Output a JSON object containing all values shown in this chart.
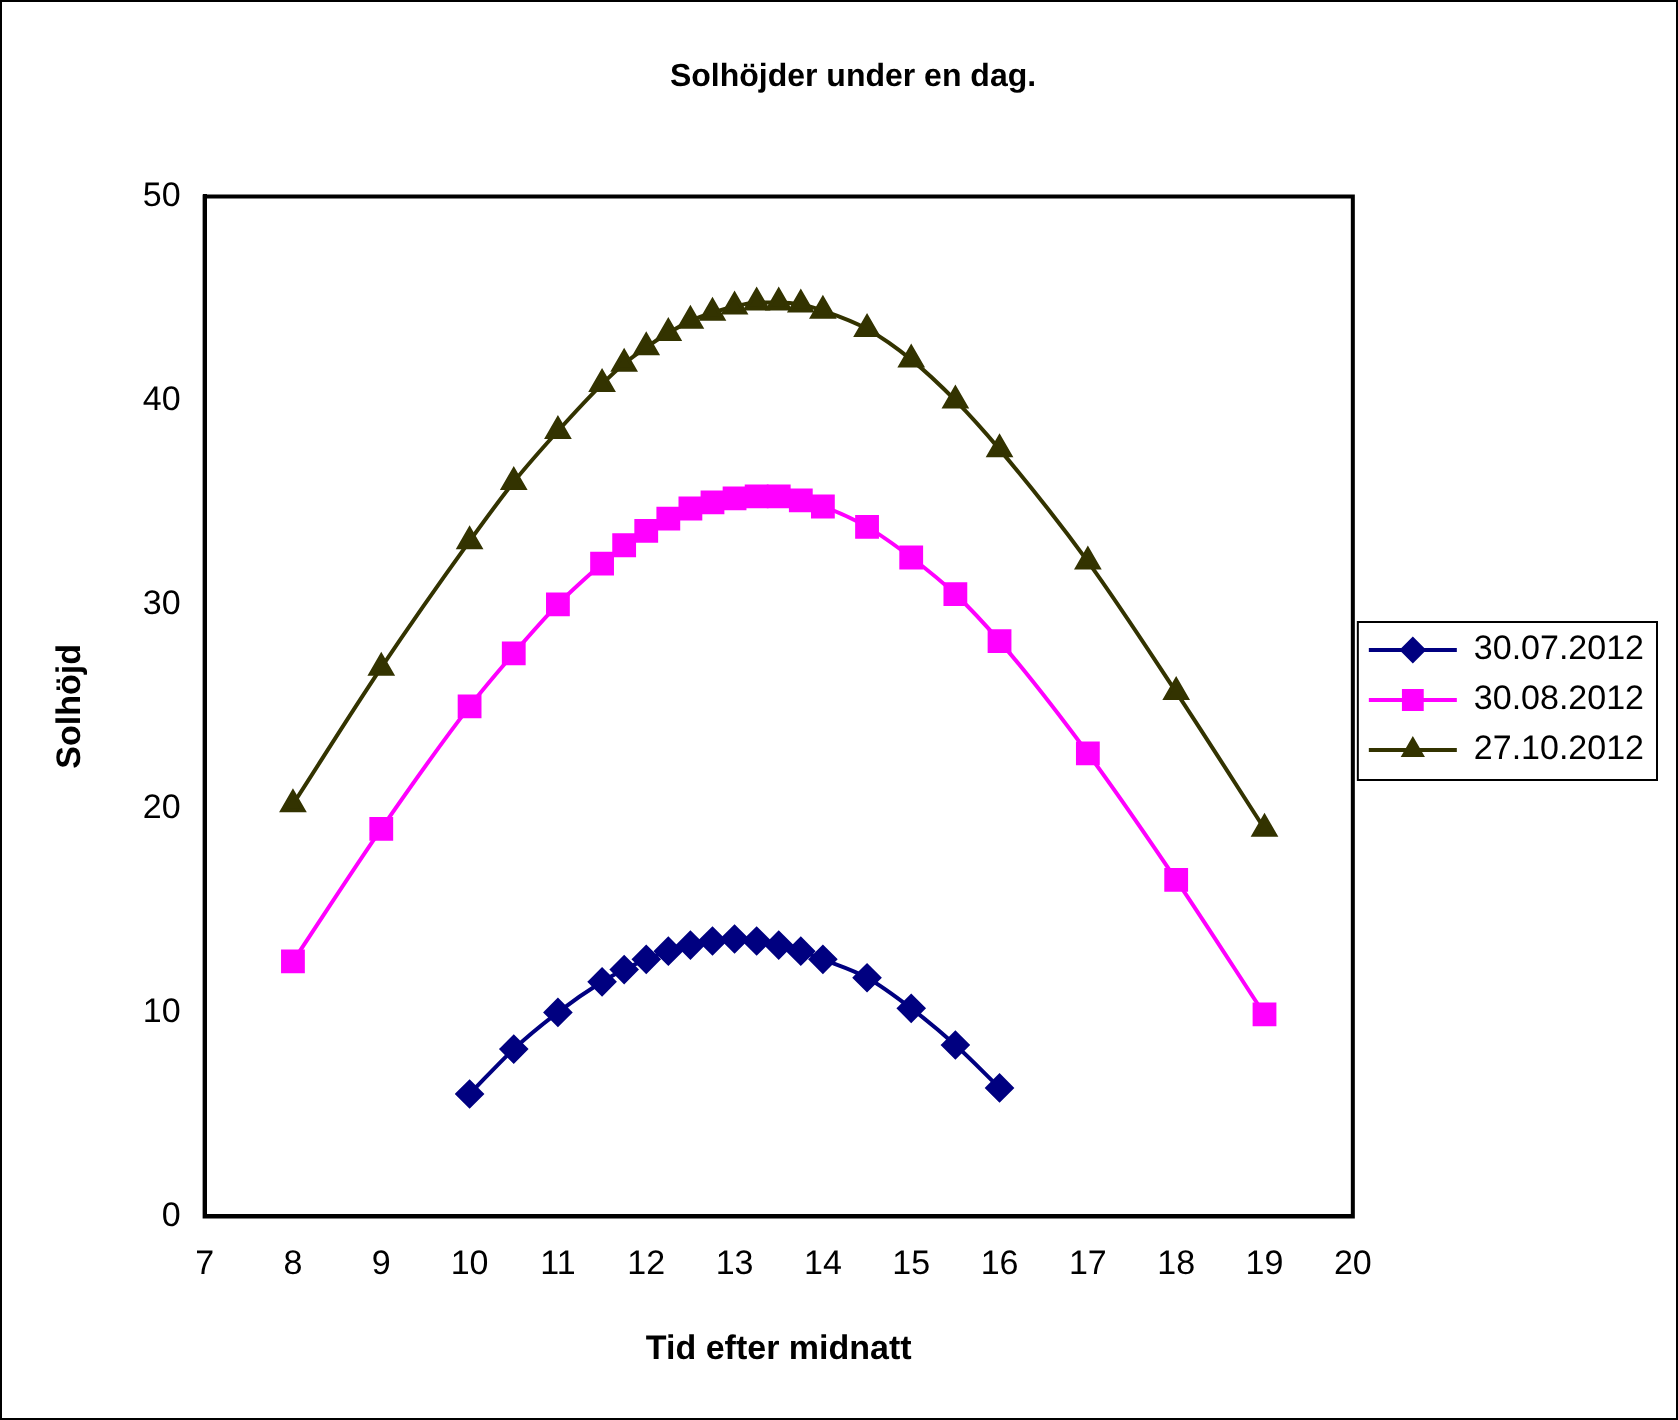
{
  "chart_data": {
    "type": "line",
    "title": "Solhöjder under en dag.",
    "xlabel": "Tid efter midnatt",
    "ylabel": "Solhöjd",
    "xlim": [
      7,
      20
    ],
    "xticks": [
      7,
      8,
      9,
      10,
      11,
      12,
      13,
      14,
      15,
      16,
      17,
      18,
      19,
      20
    ],
    "ylim": [
      0,
      50
    ],
    "yticks": [
      0,
      10,
      20,
      30,
      40,
      50
    ],
    "grid": false,
    "legend": "right",
    "line_style": "solid",
    "series": [
      {
        "name": "30.07.2012",
        "color": "#000080",
        "marker": "diamond",
        "x": [
          10,
          10.5,
          11,
          11.5,
          11.75,
          12,
          12.25,
          12.5,
          12.75,
          13,
          13.25,
          13.5,
          13.75,
          14,
          14.5,
          15,
          15.5,
          16
        ],
        "values": [
          6.0,
          8.2,
          10.0,
          11.5,
          12.1,
          12.6,
          13.0,
          13.3,
          13.5,
          13.6,
          13.5,
          13.3,
          13.0,
          12.6,
          11.7,
          10.2,
          8.4,
          6.3
        ]
      },
      {
        "name": "30.08.2012",
        "color": "#ff00ff",
        "marker": "square",
        "x": [
          8,
          9,
          10,
          10.5,
          11,
          11.5,
          11.75,
          12,
          12.25,
          12.5,
          12.75,
          13,
          13.25,
          13.5,
          13.75,
          14,
          14.5,
          15,
          15.5,
          16,
          17,
          18,
          19
        ],
        "values": [
          12.5,
          19.0,
          25.0,
          27.6,
          30.0,
          32.0,
          32.9,
          33.6,
          34.2,
          34.7,
          35.0,
          35.2,
          35.3,
          35.3,
          35.1,
          34.8,
          33.8,
          32.3,
          30.5,
          28.2,
          22.7,
          16.5,
          9.9
        ]
      },
      {
        "name": "27.10.2012",
        "color": "#333300",
        "marker": "triangle",
        "x": [
          8,
          9,
          10,
          10.5,
          11,
          11.5,
          11.75,
          12,
          12.25,
          12.5,
          12.75,
          13,
          13.25,
          13.5,
          13.75,
          14,
          14.5,
          15,
          15.5,
          16,
          17,
          18,
          19
        ],
        "values": [
          20.2,
          26.9,
          33.1,
          36.0,
          38.5,
          40.8,
          41.8,
          42.6,
          43.3,
          43.9,
          44.3,
          44.6,
          44.8,
          44.8,
          44.7,
          44.4,
          43.5,
          42.0,
          40.0,
          37.6,
          32.1,
          25.7,
          19.0
        ]
      }
    ]
  }
}
